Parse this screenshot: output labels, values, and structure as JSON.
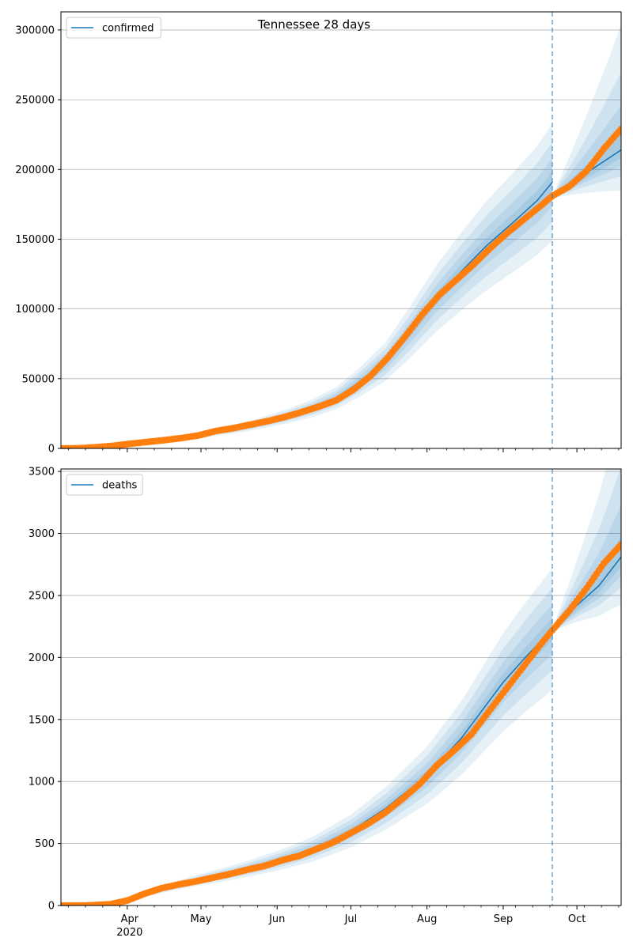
{
  "title": "Tennessee 28 days",
  "x_axis": {
    "month_labels": [
      "Apr",
      "May",
      "Jun",
      "Jul",
      "Aug",
      "Sep",
      "Oct"
    ],
    "year_label": "2020"
  },
  "chart_data": [
    {
      "type": "line",
      "panel": "top",
      "legend_position": "upper-left",
      "grid": "horizontal",
      "xlim": [
        "2020-03-05",
        "2020-10-19"
      ],
      "ylim": [
        0,
        313000
      ],
      "yticks": [
        0,
        50000,
        100000,
        150000,
        200000,
        250000,
        300000
      ],
      "ytick_labels": [
        "0",
        "50000",
        "100000",
        "150000",
        "200000",
        "250000",
        "300000"
      ],
      "forecast_start": "2020-09-21",
      "series": [
        {
          "name": "confirmed",
          "kind": "model-fit",
          "color": "#1f77b4",
          "points": [
            [
              "2020-03-05",
              0
            ],
            [
              "2020-03-15",
              300
            ],
            [
              "2020-03-25",
              1200
            ],
            [
              "2020-04-05",
              3500
            ],
            [
              "2020-04-15",
              5500
            ],
            [
              "2020-04-25",
              7500
            ],
            [
              "2020-05-05",
              11000
            ],
            [
              "2020-05-15",
              14000
            ],
            [
              "2020-05-25",
              18000
            ],
            [
              "2020-06-05",
              23000
            ],
            [
              "2020-06-15",
              28500
            ],
            [
              "2020-06-25",
              36000
            ],
            [
              "2020-07-05",
              48000
            ],
            [
              "2020-07-15",
              62000
            ],
            [
              "2020-07-25",
              83000
            ],
            [
              "2020-08-05",
              108000
            ],
            [
              "2020-08-15",
              127000
            ],
            [
              "2020-08-25",
              145000
            ],
            [
              "2020-09-05",
              162000
            ],
            [
              "2020-09-15",
              178000
            ],
            [
              "2020-09-21",
              191000
            ]
          ]
        },
        {
          "name": "confirmed-forecast",
          "kind": "forecast",
          "color": "#1f77b4",
          "points": [
            [
              "2020-09-21",
              181000
            ],
            [
              "2020-09-25",
              186000
            ],
            [
              "2020-10-01",
              193000
            ],
            [
              "2020-10-07",
              200000
            ],
            [
              "2020-10-13",
              207000
            ],
            [
              "2020-10-19",
              214000
            ]
          ]
        },
        {
          "name": "confirmed-observed",
          "kind": "observed",
          "color": "#ff7f0e",
          "points": [
            [
              "2020-03-05",
              0
            ],
            [
              "2020-03-12",
              100
            ],
            [
              "2020-03-19",
              800
            ],
            [
              "2020-03-26",
              1800
            ],
            [
              "2020-04-02",
              3300
            ],
            [
              "2020-04-09",
              4600
            ],
            [
              "2020-04-16",
              5900
            ],
            [
              "2020-04-23",
              7400
            ],
            [
              "2020-04-30",
              9300
            ],
            [
              "2020-05-07",
              12500
            ],
            [
              "2020-05-14",
              14500
            ],
            [
              "2020-05-21",
              17000
            ],
            [
              "2020-05-28",
              19500
            ],
            [
              "2020-06-04",
              22500
            ],
            [
              "2020-06-11",
              26000
            ],
            [
              "2020-06-18",
              30000
            ],
            [
              "2020-06-25",
              34500
            ],
            [
              "2020-07-02",
              42000
            ],
            [
              "2020-07-09",
              52000
            ],
            [
              "2020-07-16",
              65000
            ],
            [
              "2020-07-23",
              80000
            ],
            [
              "2020-07-30",
              96000
            ],
            [
              "2020-08-06",
              110000
            ],
            [
              "2020-08-13",
              121000
            ],
            [
              "2020-08-20",
              132000
            ],
            [
              "2020-08-27",
              144000
            ],
            [
              "2020-09-03",
              155000
            ],
            [
              "2020-09-10",
              165000
            ],
            [
              "2020-09-17",
              175000
            ],
            [
              "2020-09-21",
              181000
            ],
            [
              "2020-09-28",
              188000
            ],
            [
              "2020-10-05",
              199000
            ],
            [
              "2020-10-12",
              215000
            ],
            [
              "2020-10-19",
              229000
            ]
          ]
        }
      ]
    },
    {
      "type": "line",
      "panel": "bottom",
      "legend_position": "upper-left",
      "grid": "horizontal",
      "xlim": [
        "2020-03-05",
        "2020-10-19"
      ],
      "ylim": [
        0,
        3520
      ],
      "yticks": [
        0,
        500,
        1000,
        1500,
        2000,
        2500,
        3000,
        3500
      ],
      "ytick_labels": [
        "0",
        "500",
        "1000",
        "1500",
        "2000",
        "2500",
        "3000",
        "3500"
      ],
      "forecast_start": "2020-09-21",
      "series": [
        {
          "name": "deaths",
          "kind": "model-fit",
          "color": "#1f77b4",
          "points": [
            [
              "2020-03-05",
              0
            ],
            [
              "2020-03-20",
              5
            ],
            [
              "2020-04-01",
              50
            ],
            [
              "2020-04-15",
              130
            ],
            [
              "2020-05-01",
              210
            ],
            [
              "2020-05-15",
              270
            ],
            [
              "2020-06-01",
              360
            ],
            [
              "2020-06-15",
              450
            ],
            [
              "2020-07-01",
              600
            ],
            [
              "2020-07-15",
              780
            ],
            [
              "2020-08-01",
              1050
            ],
            [
              "2020-08-15",
              1350
            ],
            [
              "2020-09-01",
              1800
            ],
            [
              "2020-09-10",
              2000
            ],
            [
              "2020-09-21",
              2230
            ]
          ]
        },
        {
          "name": "deaths-forecast",
          "kind": "forecast",
          "color": "#1f77b4",
          "points": [
            [
              "2020-09-21",
              2230
            ],
            [
              "2020-10-01",
              2420
            ],
            [
              "2020-10-10",
              2580
            ],
            [
              "2020-10-19",
              2810
            ]
          ]
        },
        {
          "name": "deaths-observed",
          "kind": "observed",
          "color": "#ff7f0e",
          "points": [
            [
              "2020-03-05",
              0
            ],
            [
              "2020-03-15",
              0
            ],
            [
              "2020-03-25",
              10
            ],
            [
              "2020-04-01",
              40
            ],
            [
              "2020-04-08",
              95
            ],
            [
              "2020-04-15",
              140
            ],
            [
              "2020-04-22",
              170
            ],
            [
              "2020-04-29",
              195
            ],
            [
              "2020-05-06",
              225
            ],
            [
              "2020-05-13",
              255
            ],
            [
              "2020-05-20",
              290
            ],
            [
              "2020-05-27",
              320
            ],
            [
              "2020-06-03",
              365
            ],
            [
              "2020-06-10",
              400
            ],
            [
              "2020-06-17",
              455
            ],
            [
              "2020-06-24",
              510
            ],
            [
              "2020-07-01",
              585
            ],
            [
              "2020-07-08",
              660
            ],
            [
              "2020-07-15",
              750
            ],
            [
              "2020-07-22",
              860
            ],
            [
              "2020-07-29",
              980
            ],
            [
              "2020-08-05",
              1130
            ],
            [
              "2020-08-12",
              1250
            ],
            [
              "2020-08-19",
              1380
            ],
            [
              "2020-08-26",
              1560
            ],
            [
              "2020-09-02",
              1740
            ],
            [
              "2020-09-09",
              1920
            ],
            [
              "2020-09-16",
              2100
            ],
            [
              "2020-09-21",
              2220
            ],
            [
              "2020-09-28",
              2380
            ],
            [
              "2020-10-05",
              2560
            ],
            [
              "2020-10-12",
              2760
            ],
            [
              "2020-10-19",
              2910
            ]
          ]
        }
      ]
    }
  ]
}
